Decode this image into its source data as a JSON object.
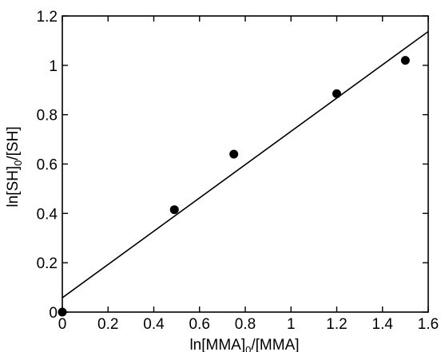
{
  "chart_data": {
    "type": "scatter",
    "xlabel": {
      "prefix": "ln[MMA]",
      "subscript": "0",
      "suffix": "/[MMA]"
    },
    "ylabel": {
      "prefix": "ln[SH]",
      "subscript": "0",
      "suffix": "/[SH]"
    },
    "xlim": [
      0,
      1.6
    ],
    "ylim": [
      0,
      1.2
    ],
    "x_ticks": [
      0,
      0.2,
      0.4,
      0.6,
      0.8,
      1,
      1.2,
      1.4,
      1.6
    ],
    "x_tick_labels": [
      "0",
      "0.2",
      "0.4",
      "0.6",
      "0.8",
      "1",
      "1.2",
      "1.4",
      "1.6"
    ],
    "y_ticks": [
      0,
      0.2,
      0.4,
      0.6,
      0.8,
      1,
      1.2
    ],
    "y_tick_labels": [
      "0",
      "0.2",
      "0.4",
      "0.6",
      "0.8",
      "1",
      "1.2"
    ],
    "grid": false,
    "series": [
      {
        "kind": "points",
        "x": [
          0,
          0.49,
          0.75,
          1.2,
          1.5
        ],
        "y": [
          0,
          0.415,
          0.64,
          0.885,
          1.02
        ]
      },
      {
        "kind": "fit-line",
        "x": [
          0,
          1.6
        ],
        "y": [
          0.058,
          1.137
        ]
      }
    ],
    "colors": {
      "points": "#000000",
      "line": "#000000",
      "axes": "#000000"
    }
  }
}
